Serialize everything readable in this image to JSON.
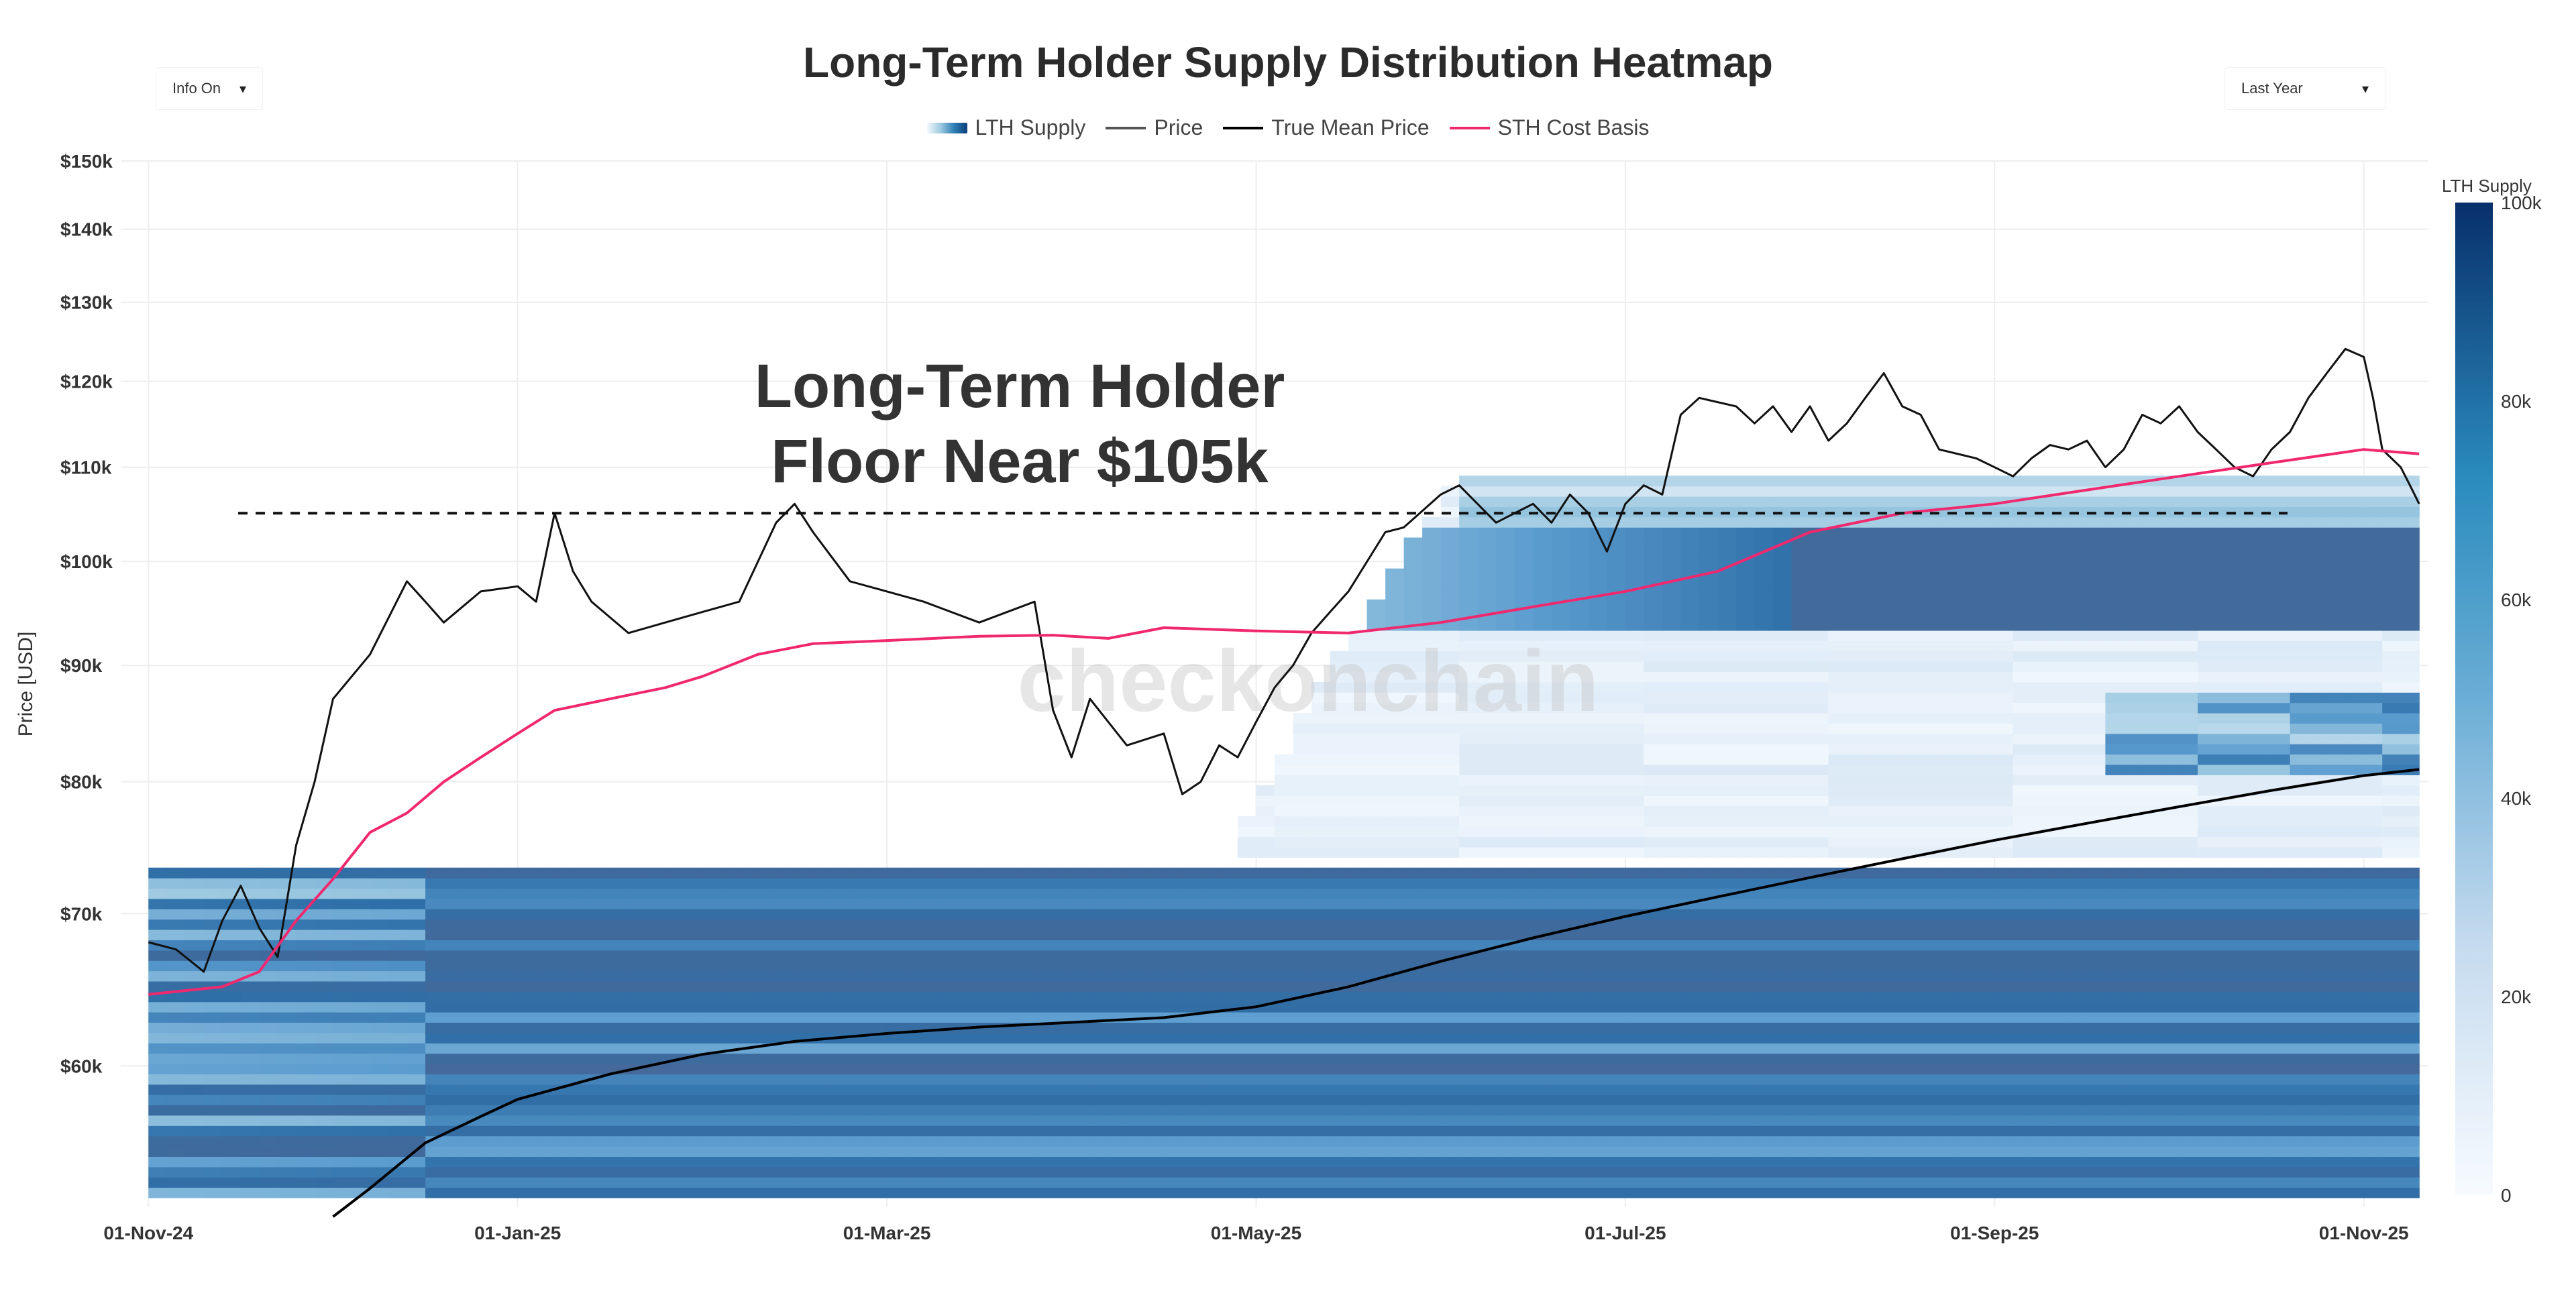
{
  "header": {
    "title": "Long-Term Holder Supply Distribution Heatmap",
    "info_dropdown": "Info On",
    "range_dropdown": "Last Year",
    "caret": "▾"
  },
  "legend": {
    "items": [
      {
        "label": "LTH Supply",
        "kind": "gradient"
      },
      {
        "label": "Price",
        "kind": "line",
        "color": "#555555"
      },
      {
        "label": "True Mean Price",
        "kind": "line",
        "color": "#000000"
      },
      {
        "label": "STH Cost Basis",
        "kind": "line",
        "color": "#f0286e"
      }
    ]
  },
  "annotation": {
    "line1": "Long-Term Holder",
    "line2": "Floor Near $105k",
    "floor_level": 105000
  },
  "watermark": "checkonchain",
  "colors": {
    "price": "#111111",
    "true_mean": "#000000",
    "sth": "#f0286e",
    "grid": "#eeeeee",
    "heat_low": "#f2f8fd",
    "heat_mid": "#6baed6",
    "heat_high": "#0b3d7a",
    "heat_dense": "#44699a"
  },
  "chart_data": {
    "type": "heatmap",
    "title": "Long-Term Holder Supply Distribution Heatmap",
    "ylabel": "Price [USD]",
    "y_scale": "log",
    "ylim": [
      52000,
      150000
    ],
    "x_range_months": [
      -0.15,
      12.35
    ],
    "x_ticks": [
      {
        "label": "01-Nov-24",
        "m": 0
      },
      {
        "label": "01-Jan-25",
        "m": 2
      },
      {
        "label": "01-Mar-25",
        "m": 4
      },
      {
        "label": "01-May-25",
        "m": 6
      },
      {
        "label": "01-Jul-25",
        "m": 8
      },
      {
        "label": "01-Sep-25",
        "m": 10
      },
      {
        "label": "01-Nov-25",
        "m": 12
      }
    ],
    "y_ticks": [
      {
        "label": "$60k",
        "v": 60000
      },
      {
        "label": "$70k",
        "v": 70000
      },
      {
        "label": "$80k",
        "v": 80000
      },
      {
        "label": "$90k",
        "v": 90000
      },
      {
        "label": "$100k",
        "v": 100000
      },
      {
        "label": "$110k",
        "v": 110000
      },
      {
        "label": "$120k",
        "v": 120000
      },
      {
        "label": "$130k",
        "v": 130000
      },
      {
        "label": "$140k",
        "v": 140000
      },
      {
        "label": "$150k",
        "v": 150000
      }
    ],
    "colorbar": {
      "title": "LTH Supply",
      "range": [
        0,
        100000
      ],
      "ticks": [
        {
          "label": "0",
          "v": 0
        },
        {
          "label": "20k",
          "v": 20000
        },
        {
          "label": "40k",
          "v": 40000
        },
        {
          "label": "60k",
          "v": 60000
        },
        {
          "label": "80k",
          "v": 80000
        },
        {
          "label": "100k",
          "v": 100000
        }
      ]
    },
    "series": [
      {
        "name": "Price",
        "points": [
          [
            0,
            68000
          ],
          [
            0.15,
            67500
          ],
          [
            0.3,
            66000
          ],
          [
            0.4,
            69500
          ],
          [
            0.5,
            72000
          ],
          [
            0.6,
            69000
          ],
          [
            0.7,
            67000
          ],
          [
            0.8,
            75000
          ],
          [
            0.9,
            80000
          ],
          [
            1.0,
            87000
          ],
          [
            1.2,
            91000
          ],
          [
            1.4,
            98000
          ],
          [
            1.5,
            96000
          ],
          [
            1.6,
            94000
          ],
          [
            1.8,
            97000
          ],
          [
            2.0,
            97500
          ],
          [
            2.1,
            96000
          ],
          [
            2.2,
            105000
          ],
          [
            2.3,
            99000
          ],
          [
            2.4,
            96000
          ],
          [
            2.6,
            93000
          ],
          [
            2.8,
            94000
          ],
          [
            3.0,
            95000
          ],
          [
            3.2,
            96000
          ],
          [
            3.4,
            104000
          ],
          [
            3.5,
            106000
          ],
          [
            3.6,
            103000
          ],
          [
            3.8,
            98000
          ],
          [
            4.0,
            97000
          ],
          [
            4.2,
            96000
          ],
          [
            4.5,
            94000
          ],
          [
            4.8,
            96000
          ],
          [
            4.9,
            86000
          ],
          [
            5.0,
            82000
          ],
          [
            5.1,
            87000
          ],
          [
            5.3,
            83000
          ],
          [
            5.5,
            84000
          ],
          [
            5.6,
            79000
          ],
          [
            5.7,
            80000
          ],
          [
            5.8,
            83000
          ],
          [
            5.9,
            82000
          ],
          [
            6.0,
            85000
          ],
          [
            6.1,
            88000
          ],
          [
            6.2,
            90000
          ],
          [
            6.3,
            93000
          ],
          [
            6.4,
            95000
          ],
          [
            6.5,
            97000
          ],
          [
            6.7,
            103000
          ],
          [
            6.8,
            103500
          ],
          [
            7.0,
            107000
          ],
          [
            7.1,
            108000
          ],
          [
            7.3,
            104000
          ],
          [
            7.4,
            105000
          ],
          [
            7.5,
            106000
          ],
          [
            7.6,
            104000
          ],
          [
            7.7,
            107000
          ],
          [
            7.8,
            105000
          ],
          [
            7.9,
            101000
          ],
          [
            8.0,
            106000
          ],
          [
            8.1,
            108000
          ],
          [
            8.2,
            107000
          ],
          [
            8.3,
            116000
          ],
          [
            8.4,
            118000
          ],
          [
            8.6,
            117000
          ],
          [
            8.7,
            115000
          ],
          [
            8.8,
            117000
          ],
          [
            8.9,
            114000
          ],
          [
            9.0,
            117000
          ],
          [
            9.1,
            113000
          ],
          [
            9.2,
            115000
          ],
          [
            9.3,
            118000
          ],
          [
            9.4,
            121000
          ],
          [
            9.5,
            117000
          ],
          [
            9.6,
            116000
          ],
          [
            9.7,
            112000
          ],
          [
            9.9,
            111000
          ],
          [
            10.0,
            110000
          ],
          [
            10.1,
            109000
          ],
          [
            10.2,
            111000
          ],
          [
            10.3,
            112500
          ],
          [
            10.4,
            112000
          ],
          [
            10.5,
            113000
          ],
          [
            10.6,
            110000
          ],
          [
            10.7,
            112000
          ],
          [
            10.8,
            116000
          ],
          [
            10.9,
            115000
          ],
          [
            11.0,
            117000
          ],
          [
            11.1,
            114000
          ],
          [
            11.2,
            112000
          ],
          [
            11.3,
            110000
          ],
          [
            11.4,
            109000
          ],
          [
            11.5,
            112000
          ],
          [
            11.6,
            114000
          ],
          [
            11.7,
            118000
          ],
          [
            11.8,
            121000
          ],
          [
            11.9,
            124000
          ],
          [
            12.0,
            123000
          ],
          [
            12.05,
            118000
          ],
          [
            12.1,
            112000
          ],
          [
            12.15,
            111000
          ],
          [
            12.2,
            110000
          ],
          [
            12.25,
            108000
          ],
          [
            12.3,
            106000
          ]
        ]
      },
      {
        "name": "STH Cost Basis",
        "points": [
          [
            0,
            64500
          ],
          [
            0.4,
            65000
          ],
          [
            0.6,
            66000
          ],
          [
            0.8,
            69500
          ],
          [
            1.0,
            72500
          ],
          [
            1.2,
            76000
          ],
          [
            1.4,
            77500
          ],
          [
            1.6,
            80000
          ],
          [
            1.8,
            82000
          ],
          [
            2.0,
            84000
          ],
          [
            2.2,
            86000
          ],
          [
            2.5,
            87000
          ],
          [
            2.8,
            88000
          ],
          [
            3.0,
            89000
          ],
          [
            3.3,
            91000
          ],
          [
            3.6,
            92000
          ],
          [
            4.0,
            92300
          ],
          [
            4.5,
            92700
          ],
          [
            4.9,
            92800
          ],
          [
            5.2,
            92500
          ],
          [
            5.5,
            93500
          ],
          [
            6.0,
            93200
          ],
          [
            6.5,
            93000
          ],
          [
            7.0,
            94000
          ],
          [
            7.5,
            95500
          ],
          [
            8.0,
            97000
          ],
          [
            8.5,
            99000
          ],
          [
            9.0,
            103000
          ],
          [
            9.5,
            105000
          ],
          [
            10.0,
            106000
          ],
          [
            10.5,
            107500
          ],
          [
            11.0,
            109000
          ],
          [
            11.5,
            110500
          ],
          [
            12.0,
            112000
          ],
          [
            12.3,
            111500
          ]
        ]
      },
      {
        "name": "True Mean Price",
        "points": [
          [
            1.0,
            51500
          ],
          [
            1.2,
            53000
          ],
          [
            1.5,
            55500
          ],
          [
            1.8,
            57000
          ],
          [
            2.0,
            58000
          ],
          [
            2.5,
            59500
          ],
          [
            3.0,
            60700
          ],
          [
            3.5,
            61500
          ],
          [
            4.0,
            62000
          ],
          [
            4.5,
            62400
          ],
          [
            5.0,
            62700
          ],
          [
            5.5,
            63000
          ],
          [
            6.0,
            63700
          ],
          [
            6.5,
            65000
          ],
          [
            7.0,
            66700
          ],
          [
            7.5,
            68300
          ],
          [
            8.0,
            69800
          ],
          [
            8.5,
            71200
          ],
          [
            9.0,
            72600
          ],
          [
            9.5,
            74000
          ],
          [
            10.0,
            75400
          ],
          [
            10.5,
            76700
          ],
          [
            11.0,
            78000
          ],
          [
            11.5,
            79300
          ],
          [
            12.0,
            80500
          ],
          [
            12.3,
            81000
          ]
        ]
      }
    ]
  }
}
